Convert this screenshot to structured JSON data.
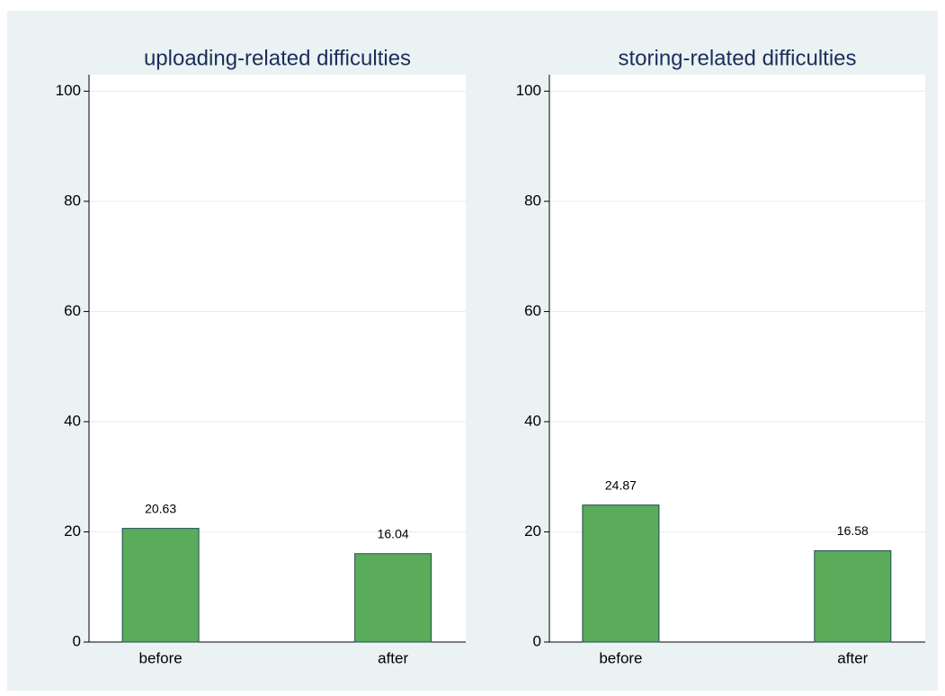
{
  "chart_data": [
    {
      "type": "bar",
      "title": "uploading-related difficulties",
      "categories": [
        "before",
        "after"
      ],
      "values": [
        20.63,
        16.04
      ],
      "color": "#5aab5a",
      "ylim": [
        0,
        103
      ],
      "yticks": [
        0,
        20,
        40,
        60,
        80,
        100
      ],
      "grid": true
    },
    {
      "type": "bar",
      "title": "storing-related difficulties",
      "categories": [
        "before",
        "after"
      ],
      "values": [
        24.87,
        16.58
      ],
      "color": "#5aab5a",
      "ylim": [
        0,
        103
      ],
      "yticks": [
        0,
        20,
        40,
        60,
        80,
        100
      ],
      "grid": true
    }
  ]
}
